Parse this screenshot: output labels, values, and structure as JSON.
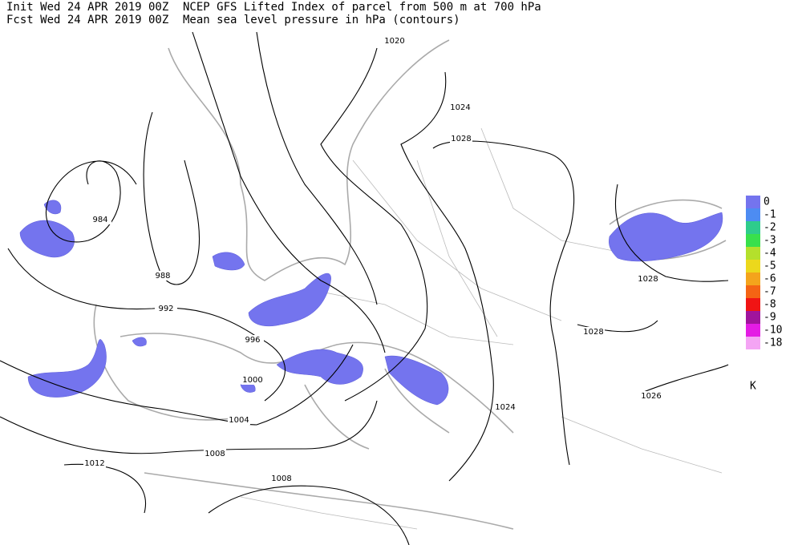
{
  "header": {
    "init_line": "Init  Wed 24 APR 2019 00Z",
    "fcst_line": "Fcst Wed 24 APR 2019 00Z",
    "title_line1": "NCEP GFS Lifted Index of parcel from 500 m at 700 hPa",
    "title_line2": "Mean sea level pressure in hPa (contours)"
  },
  "contour_labels": [
    1020,
    1024,
    1028,
    984,
    988,
    992,
    996,
    1000,
    1004,
    1008,
    1012,
    1008,
    1028,
    1028,
    1026,
    1024
  ],
  "legend": {
    "items": [
      {
        "label": 0,
        "color": "#7474ee"
      },
      {
        "label": -1,
        "color": "#4d8cf2"
      },
      {
        "label": -2,
        "color": "#2ecc8c"
      },
      {
        "label": -3,
        "color": "#38e04c"
      },
      {
        "label": -4,
        "color": "#b4e02c"
      },
      {
        "label": -5,
        "color": "#ecd81c"
      },
      {
        "label": -6,
        "color": "#f4a41c"
      },
      {
        "label": -7,
        "color": "#f46414"
      },
      {
        "label": -8,
        "color": "#f01414"
      },
      {
        "label": -9,
        "color": "#a0149c"
      },
      {
        "label": -10,
        "color": "#e41ce4"
      },
      {
        "label": -18,
        "color": "#f4a4f4"
      }
    ],
    "unit": "K"
  }
}
